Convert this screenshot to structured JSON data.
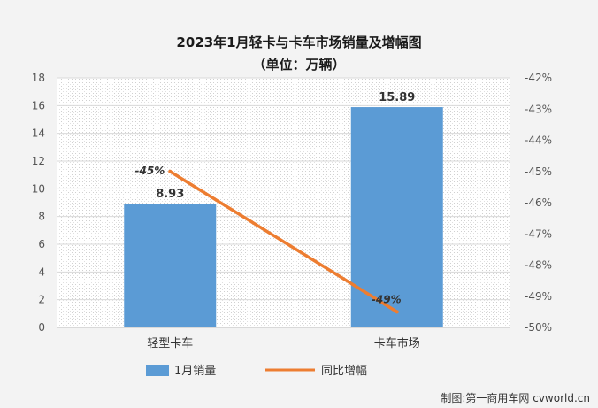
{
  "chart_data": {
    "type": "bar",
    "title": "2023年1月轻卡与卡车市场销量及增幅图",
    "subtitle": "（单位：万辆）",
    "categories": [
      "轻型卡车",
      "卡车市场"
    ],
    "series": [
      {
        "name": "1月销量",
        "type": "bar",
        "axis": "left",
        "values": [
          8.93,
          15.89
        ],
        "labels": [
          "8.93",
          "15.89"
        ],
        "color": "#5b9bd5"
      },
      {
        "name": "同比增幅",
        "type": "line",
        "axis": "right",
        "values": [
          -45,
          -49.5
        ],
        "labels": [
          "-45%",
          "-49%"
        ],
        "color": "#ed7d31"
      }
    ],
    "y_left": {
      "range": [
        0,
        18
      ],
      "ticks": [
        "0",
        "2",
        "4",
        "6",
        "8",
        "10",
        "12",
        "14",
        "16",
        "18"
      ]
    },
    "y_right": {
      "range": [
        -50,
        -42
      ],
      "ticks": [
        "-50%",
        "-49%",
        "-48%",
        "-47%",
        "-46%",
        "-45%",
        "-44%",
        "-43%",
        "-42%"
      ]
    },
    "grid": true,
    "legend": "bottom"
  },
  "credit": "制图:第一商用车网 cvworld.cn"
}
